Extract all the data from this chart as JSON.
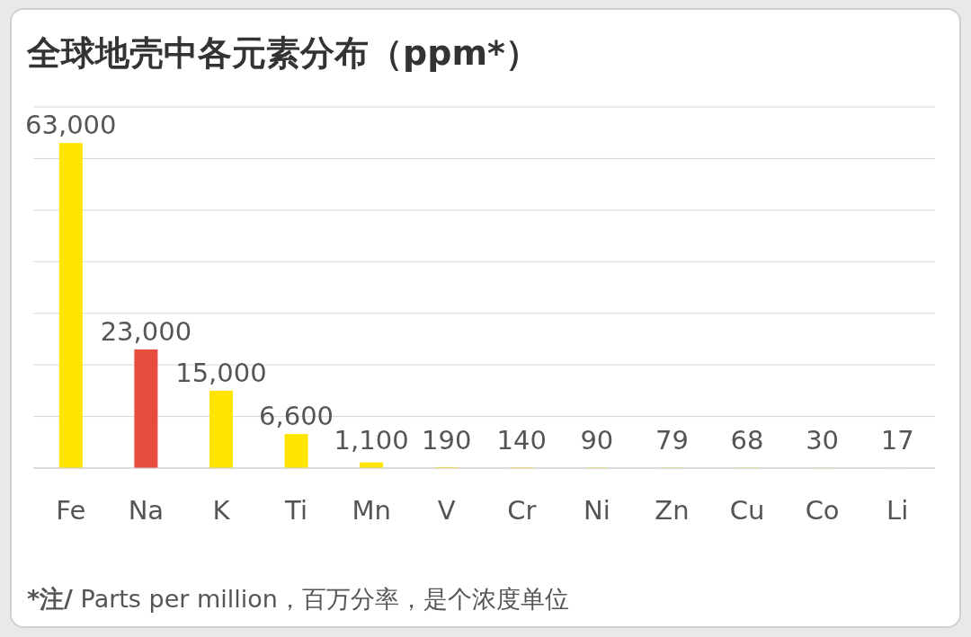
{
  "chart_data": {
    "type": "bar",
    "title": "全球地壳中各元素分布（ppm*）",
    "categories": [
      "Fe",
      "Na",
      "K",
      "Ti",
      "Mn",
      "V",
      "Cr",
      "Ni",
      "Zn",
      "Cu",
      "Co",
      "Li"
    ],
    "values": [
      63000,
      23000,
      15000,
      6600,
      1100,
      190,
      140,
      90,
      79,
      68,
      30,
      17
    ],
    "value_labels": [
      "63,000",
      "23,000",
      "15,000",
      "6,600",
      "1,100",
      "190",
      "140",
      "90",
      "79",
      "68",
      "30",
      "17"
    ],
    "colors": [
      "#ffe500",
      "#e84c3d",
      "#ffe500",
      "#ffe500",
      "#ffe500",
      "#ffe500",
      "#ffe500",
      "#ffe500",
      "#ffe500",
      "#ffe500",
      "#ffe500",
      "#ffe500"
    ],
    "ylim": [
      0,
      70000
    ],
    "yticks": [
      {
        "value": 0,
        "label": null
      },
      {
        "value": 10000,
        "label": null
      },
      {
        "value": 20000,
        "label": null
      },
      {
        "value": 30000,
        "label": null
      },
      {
        "value": 40000,
        "label": null
      },
      {
        "value": 50000,
        "label": null
      },
      {
        "value": 60000,
        "label": null
      },
      {
        "value": 70000,
        "label": null
      }
    ],
    "grid": "y",
    "annotations": [
      "*注/ Parts per million，百万分率，是个浓度单位"
    ]
  }
}
